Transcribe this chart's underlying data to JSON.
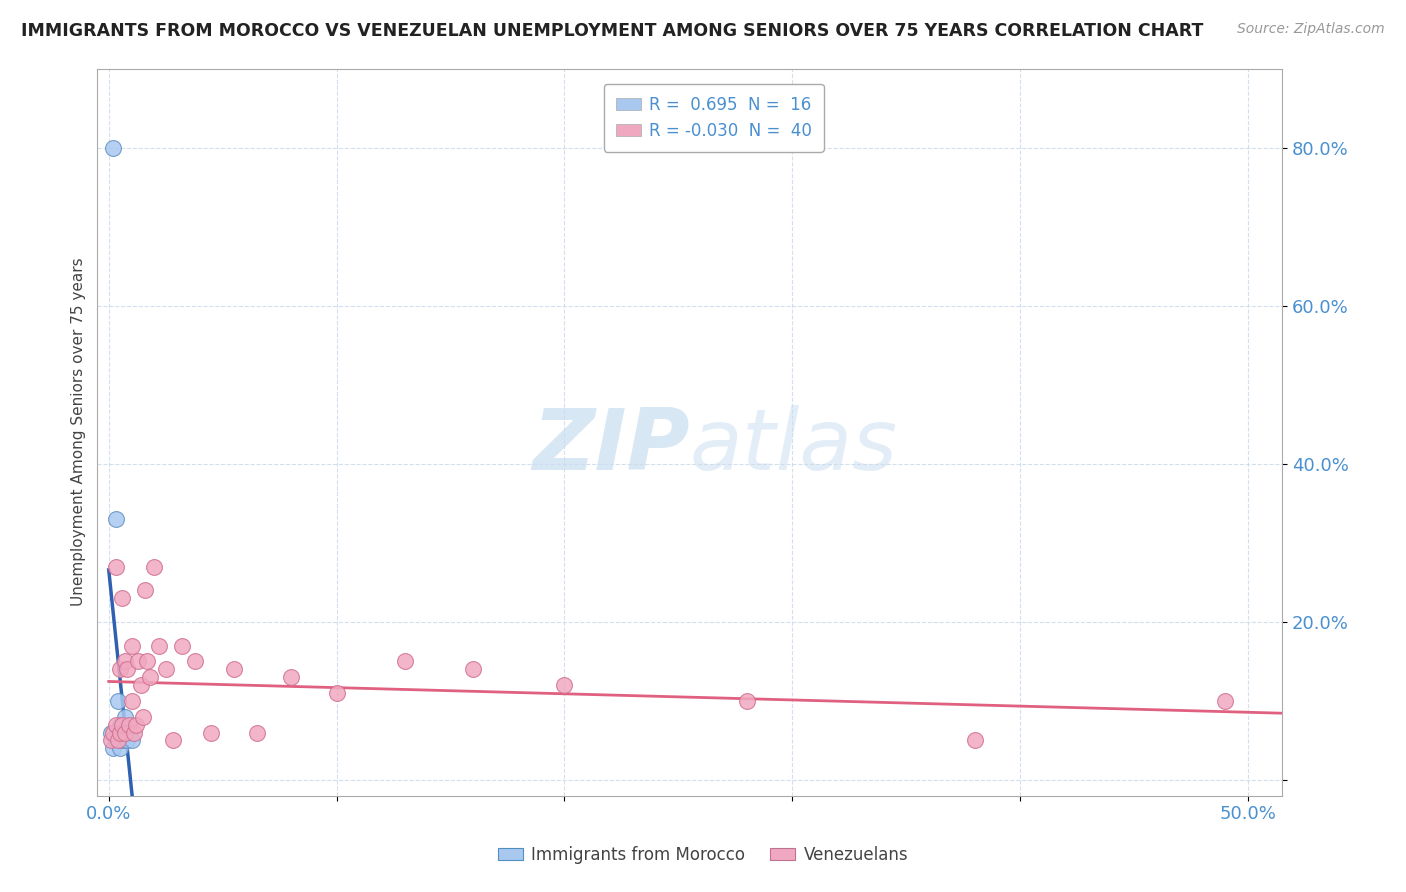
{
  "title": "IMMIGRANTS FROM MOROCCO VS VENEZUELAN UNEMPLOYMENT AMONG SENIORS OVER 75 YEARS CORRELATION CHART",
  "source": "Source: ZipAtlas.com",
  "ylabel": "Unemployment Among Seniors over 75 years",
  "ytick_vals": [
    0.0,
    0.2,
    0.4,
    0.6,
    0.8
  ],
  "ytick_labels": [
    "",
    "20.0%",
    "40.0%",
    "60.0%",
    "80.0%"
  ],
  "xtick_vals": [
    0.0,
    0.1,
    0.2,
    0.3,
    0.4,
    0.5
  ],
  "xtick_labels": [
    "0.0%",
    "",
    "",
    "",
    "",
    "50.0%"
  ],
  "xlim": [
    -0.005,
    0.515
  ],
  "ylim": [
    -0.02,
    0.9
  ],
  "legend": [
    {
      "label": "R =  0.695  N =  16",
      "color": "#a8c8f0"
    },
    {
      "label": "R = -0.030  N =  40",
      "color": "#f0a8c0"
    }
  ],
  "series1_color": "#a8c8f0",
  "series1_edge": "#6090c0",
  "series2_color": "#f0a8c0",
  "series2_edge": "#d07090",
  "line1_color": "#3060b0",
  "line2_color": "#e06080",
  "watermark_zip": "ZIP",
  "watermark_atlas": "atlas",
  "watermark_color": "#c8ddf0",
  "morocco_x": [
    0.001,
    0.002,
    0.002,
    0.003,
    0.003,
    0.004,
    0.004,
    0.005,
    0.005,
    0.006,
    0.006,
    0.007,
    0.007,
    0.008,
    0.009,
    0.01
  ],
  "morocco_y": [
    0.06,
    0.8,
    0.04,
    0.05,
    0.33,
    0.06,
    0.1,
    0.07,
    0.04,
    0.05,
    0.07,
    0.06,
    0.08,
    0.05,
    0.06,
    0.05
  ],
  "venezuela_x": [
    0.001,
    0.002,
    0.003,
    0.003,
    0.004,
    0.005,
    0.005,
    0.006,
    0.006,
    0.007,
    0.007,
    0.008,
    0.009,
    0.01,
    0.01,
    0.011,
    0.012,
    0.013,
    0.014,
    0.015,
    0.016,
    0.017,
    0.018,
    0.02,
    0.022,
    0.025,
    0.028,
    0.032,
    0.038,
    0.045,
    0.055,
    0.065,
    0.08,
    0.1,
    0.13,
    0.16,
    0.2,
    0.28,
    0.38,
    0.49
  ],
  "venezuela_y": [
    0.05,
    0.06,
    0.07,
    0.27,
    0.05,
    0.06,
    0.14,
    0.07,
    0.23,
    0.15,
    0.06,
    0.14,
    0.07,
    0.1,
    0.17,
    0.06,
    0.07,
    0.15,
    0.12,
    0.08,
    0.24,
    0.15,
    0.13,
    0.27,
    0.17,
    0.14,
    0.05,
    0.17,
    0.15,
    0.06,
    0.14,
    0.06,
    0.13,
    0.11,
    0.15,
    0.14,
    0.12,
    0.1,
    0.05,
    0.1
  ]
}
